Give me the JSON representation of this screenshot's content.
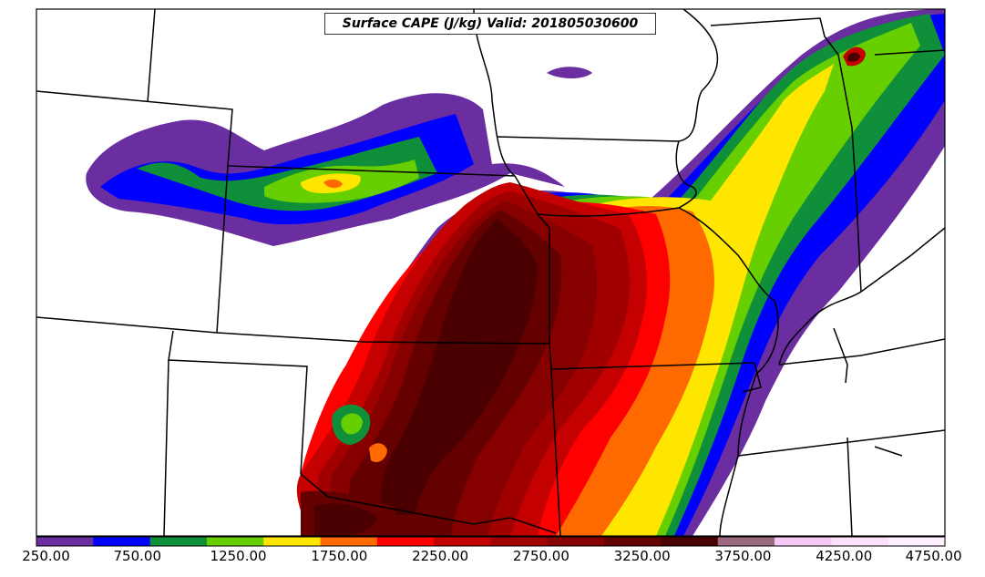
{
  "map": {
    "title": "Surface CAPE (J/kg) Valid: 201805030600"
  },
  "colorbar": {
    "min": 250,
    "max": 4750,
    "step": 250,
    "colors": [
      "#6a2ea0",
      "#0000ff",
      "#0f8f3a",
      "#67cf00",
      "#ffe600",
      "#ff6a00",
      "#ff0000",
      "#c50000",
      "#a10000",
      "#860000",
      "#650000",
      "#4a0000",
      "#9c6a80",
      "#f6c8f6",
      "#fbe1fb",
      "#fff0ff"
    ],
    "tick_labels": [
      "250.00",
      "750.00",
      "1250.00",
      "1750.00",
      "2250.00",
      "2750.00",
      "3250.00",
      "3750.00",
      "4250.00",
      "4750.00"
    ]
  },
  "colors": {
    "frame": "#000000",
    "boundary": "#000000",
    "background": "#ffffff"
  }
}
